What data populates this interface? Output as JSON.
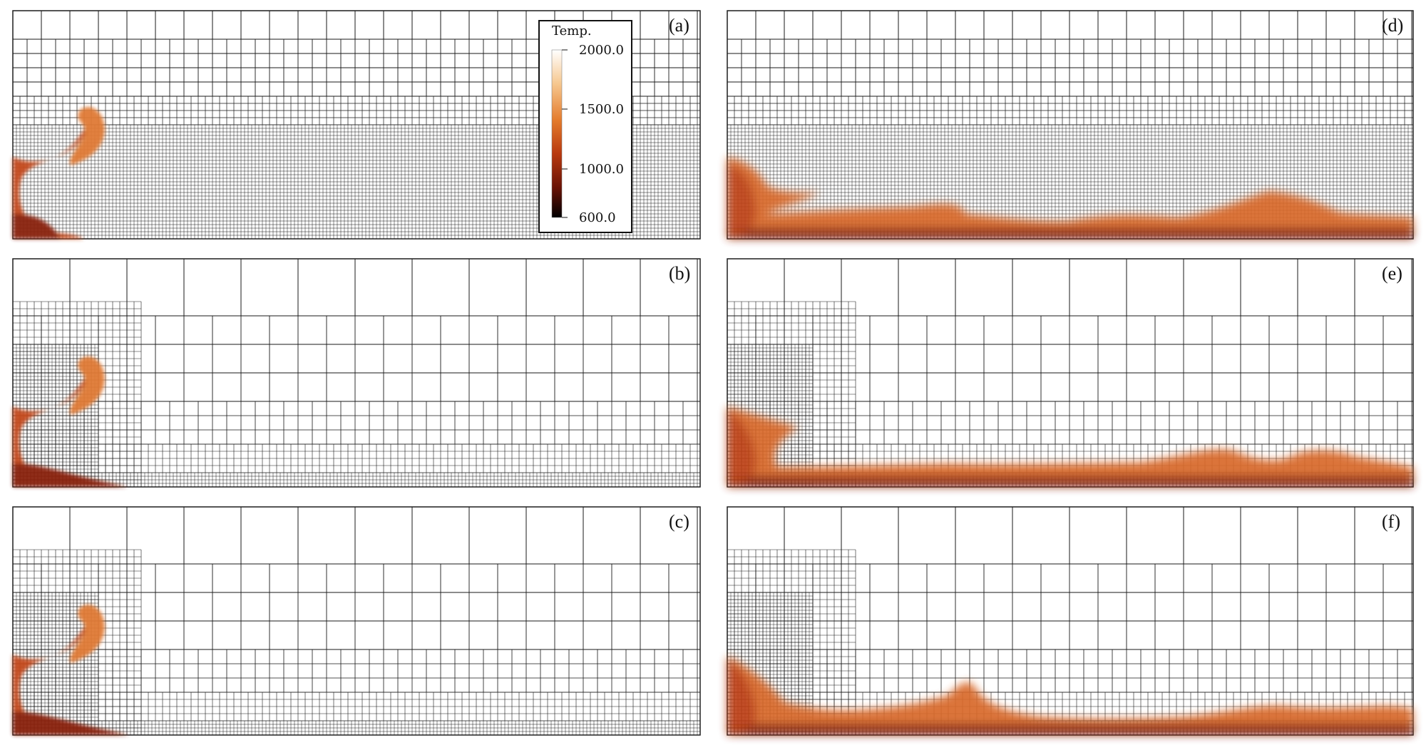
{
  "colors": {
    "grid": "#1a1a1a",
    "plume_dark": "#7a1c08",
    "plume_mid": "#c44a1a",
    "plume_light": "#e8863a"
  },
  "panels": [
    {
      "id": "a",
      "label": "(a)"
    },
    {
      "id": "b",
      "label": "(b)"
    },
    {
      "id": "c",
      "label": "(c)"
    },
    {
      "id": "d",
      "label": "(d)"
    },
    {
      "id": "e",
      "label": "(e)"
    },
    {
      "id": "f",
      "label": "(f)"
    }
  ],
  "legend": {
    "title": "Temp.",
    "ticks": [
      "2000.0",
      "1500.0",
      "1000.0",
      "600.0"
    ],
    "stops": [
      "#ffffff",
      "#f6c890",
      "#e47b2c",
      "#b8390f",
      "#6a1306",
      "#000000"
    ]
  }
}
